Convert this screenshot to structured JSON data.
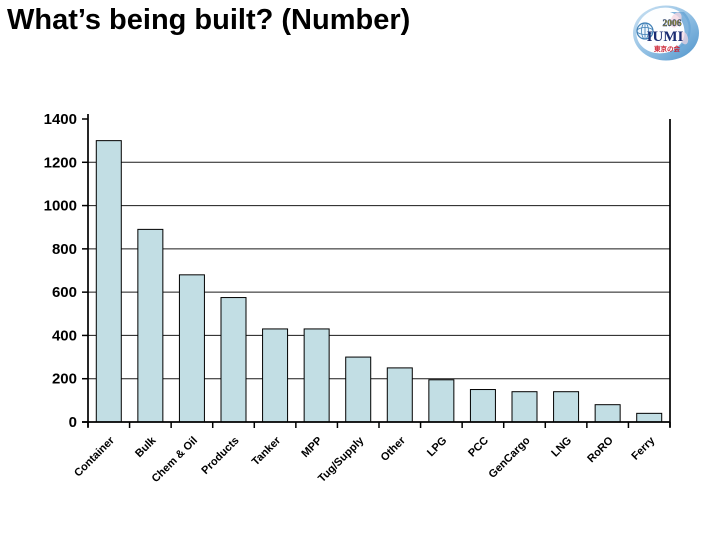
{
  "slide": {
    "title": "What’s being built? (Number)"
  },
  "logo": {
    "year": "2006",
    "name": "IUMI",
    "kanji": "東京の会"
  },
  "chart_data": {
    "type": "bar",
    "title": "",
    "xlabel": "",
    "ylabel": "",
    "categories": [
      "Container",
      "Bulk",
      "Chem & Oil",
      "Products",
      "Tanker",
      "MPP",
      "Tug/Supply",
      "Other",
      "LPG",
      "PCC",
      "GenCargo",
      "LNG",
      "RoRO",
      "Ferry"
    ],
    "values": [
      1300,
      890,
      680,
      575,
      430,
      430,
      300,
      250,
      195,
      150,
      140,
      140,
      80,
      40
    ],
    "ylim": [
      0,
      1400
    ],
    "ytick_interval": 200,
    "ytick_labels": [
      "0",
      "200",
      "400",
      "600",
      "800",
      "1000",
      "1200",
      "1400"
    ],
    "grid": true,
    "legend": false,
    "bar_color": "#c2dee4",
    "bar_border_color": "#000000",
    "gridline_color": "#1a1a1a",
    "axis_color": "#000000",
    "label_color": "#000000"
  }
}
